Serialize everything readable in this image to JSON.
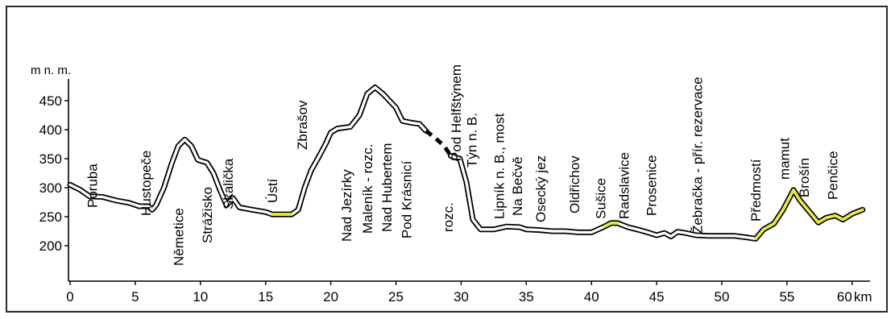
{
  "chart_data": {
    "type": "line",
    "title": "",
    "ylabel": "m n. m.",
    "xlabel": "",
    "xunit": "km",
    "xlim": [
      0,
      61
    ],
    "ylim": [
      175,
      490
    ],
    "xticks": [
      0,
      5,
      10,
      15,
      20,
      25,
      30,
      35,
      40,
      45,
      50,
      55,
      60
    ],
    "yticks": [
      200,
      250,
      300,
      350,
      400,
      450
    ],
    "grid": false,
    "colors": {
      "profile": "#000000",
      "highlight": "#e8e84a",
      "fill": "#ffffff"
    },
    "profile": [
      {
        "x": 0,
        "y": 305
      },
      {
        "x": 0.8,
        "y": 296
      },
      {
        "x": 1.5,
        "y": 285
      },
      {
        "x": 2.5,
        "y": 284
      },
      {
        "x": 3.5,
        "y": 278
      },
      {
        "x": 4.5,
        "y": 274
      },
      {
        "x": 5.3,
        "y": 268
      },
      {
        "x": 6.0,
        "y": 268
      },
      {
        "x": 6.3,
        "y": 262
      },
      {
        "x": 6.6,
        "y": 270
      },
      {
        "x": 7.2,
        "y": 300
      },
      {
        "x": 7.8,
        "y": 342
      },
      {
        "x": 8.3,
        "y": 372
      },
      {
        "x": 8.8,
        "y": 383
      },
      {
        "x": 9.3,
        "y": 372
      },
      {
        "x": 9.8,
        "y": 348
      },
      {
        "x": 10.5,
        "y": 343
      },
      {
        "x": 11.0,
        "y": 325
      },
      {
        "x": 11.5,
        "y": 296
      },
      {
        "x": 12.0,
        "y": 270
      },
      {
        "x": 12.5,
        "y": 282
      },
      {
        "x": 13.0,
        "y": 266
      },
      {
        "x": 14.0,
        "y": 262
      },
      {
        "x": 15.0,
        "y": 258
      },
      {
        "x": 15.5,
        "y": 254
      },
      {
        "x": 16.5,
        "y": 254
      },
      {
        "x": 17.0,
        "y": 254
      },
      {
        "x": 17.5,
        "y": 262
      },
      {
        "x": 18.0,
        "y": 300
      },
      {
        "x": 18.5,
        "y": 330
      },
      {
        "x": 19.0,
        "y": 350
      },
      {
        "x": 19.6,
        "y": 375
      },
      {
        "x": 20.0,
        "y": 395
      },
      {
        "x": 20.5,
        "y": 402
      },
      {
        "x": 21.5,
        "y": 405
      },
      {
        "x": 22.2,
        "y": 425
      },
      {
        "x": 22.8,
        "y": 462
      },
      {
        "x": 23.4,
        "y": 473
      },
      {
        "x": 24.0,
        "y": 462
      },
      {
        "x": 24.5,
        "y": 450
      },
      {
        "x": 25.0,
        "y": 438
      },
      {
        "x": 25.5,
        "y": 415
      },
      {
        "x": 26.2,
        "y": 412
      },
      {
        "x": 26.8,
        "y": 410
      },
      {
        "x": 27.3,
        "y": 398
      }
    ],
    "profile_dashed": [
      {
        "x": 27.3,
        "y": 398
      },
      {
        "x": 28.0,
        "y": 386
      },
      {
        "x": 28.7,
        "y": 372
      },
      {
        "x": 29.2,
        "y": 355
      }
    ],
    "profile_2": [
      {
        "x": 29.2,
        "y": 355
      },
      {
        "x": 29.6,
        "y": 352
      },
      {
        "x": 29.9,
        "y": 350
      },
      {
        "x": 30.4,
        "y": 310
      },
      {
        "x": 30.9,
        "y": 245
      },
      {
        "x": 31.5,
        "y": 228
      },
      {
        "x": 32.5,
        "y": 228
      },
      {
        "x": 33.5,
        "y": 233
      },
      {
        "x": 34.5,
        "y": 232
      },
      {
        "x": 35.0,
        "y": 228
      },
      {
        "x": 36.0,
        "y": 227
      },
      {
        "x": 37.0,
        "y": 225
      },
      {
        "x": 38.0,
        "y": 225
      },
      {
        "x": 39.0,
        "y": 223
      },
      {
        "x": 40.0,
        "y": 223
      },
      {
        "x": 41.0,
        "y": 233
      },
      {
        "x": 41.5,
        "y": 239
      },
      {
        "x": 42.0,
        "y": 239
      },
      {
        "x": 42.8,
        "y": 232
      },
      {
        "x": 43.5,
        "y": 228
      },
      {
        "x": 44.3,
        "y": 223
      },
      {
        "x": 45.0,
        "y": 218
      },
      {
        "x": 45.6,
        "y": 222
      },
      {
        "x": 46.1,
        "y": 216
      },
      {
        "x": 46.6,
        "y": 224
      },
      {
        "x": 47.2,
        "y": 222
      },
      {
        "x": 48.0,
        "y": 218
      },
      {
        "x": 49.0,
        "y": 217
      },
      {
        "x": 50.0,
        "y": 217
      },
      {
        "x": 51.0,
        "y": 217
      },
      {
        "x": 52.0,
        "y": 214
      },
      {
        "x": 52.6,
        "y": 212
      },
      {
        "x": 53.2,
        "y": 228
      },
      {
        "x": 54.0,
        "y": 238
      },
      {
        "x": 54.7,
        "y": 262
      },
      {
        "x": 55.5,
        "y": 296
      },
      {
        "x": 56.0,
        "y": 278
      },
      {
        "x": 56.6,
        "y": 262
      },
      {
        "x": 57.4,
        "y": 240
      },
      {
        "x": 58.0,
        "y": 248
      },
      {
        "x": 58.7,
        "y": 252
      },
      {
        "x": 59.3,
        "y": 245
      },
      {
        "x": 60.0,
        "y": 255
      },
      {
        "x": 60.8,
        "y": 262
      }
    ],
    "highlights": [
      [
        15.3,
        17.0
      ],
      [
        40.8,
        42.6
      ],
      [
        52.6,
        60.8
      ]
    ],
    "places": [
      {
        "name": "Poruba",
        "km": 1.7
      },
      {
        "name": "Hustopeče",
        "km": 5.8
      },
      {
        "name": "Němetice",
        "km": 8.3
      },
      {
        "name": "Strážisko",
        "km": 10.5
      },
      {
        "name": "Skalička",
        "km": 12.1
      },
      {
        "name": "Ústí",
        "km": 15.5
      },
      {
        "name": "Zbrašov",
        "km": 17.8
      },
      {
        "name": "Nad Jezírky",
        "km": 21.2
      },
      {
        "name": "Maleník - rozc.",
        "km": 22.8
      },
      {
        "name": "Nad Hubertem",
        "km": 24.3
      },
      {
        "name": "Pod Krásnicí",
        "km": 25.8
      },
      {
        "name": "rozc.",
        "km": 29.0
      },
      {
        "name": "Pod Helfštýnem",
        "km": 29.6
      },
      {
        "name": "Týn n. B.",
        "km": 30.8
      },
      {
        "name": "Lipník n. B., most",
        "km": 32.9
      },
      {
        "name": "Na Bečvě",
        "km": 34.3
      },
      {
        "name": "Osecký jez",
        "km": 36.1
      },
      {
        "name": "Oldřichov",
        "km": 38.7
      },
      {
        "name": "Sušice",
        "km": 40.7
      },
      {
        "name": "Radslavice",
        "km": 42.5
      },
      {
        "name": "Prosenice",
        "km": 44.6
      },
      {
        "name": "Žebračka - přír. rezervace",
        "km": 48.1
      },
      {
        "name": "Předmostí",
        "km": 52.6
      },
      {
        "name": "mamut",
        "km": 54.8
      },
      {
        "name": "Brošín",
        "km": 56.3
      },
      {
        "name": "Penčice",
        "km": 58.5
      }
    ]
  }
}
